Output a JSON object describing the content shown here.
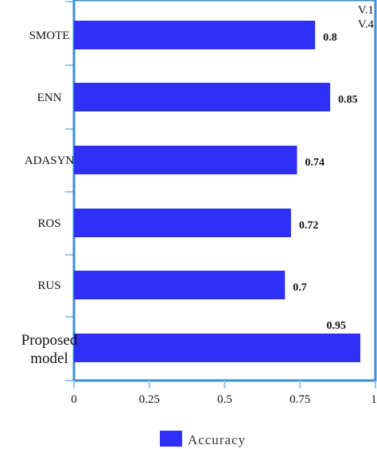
{
  "chart_data": {
    "type": "bar",
    "orientation": "horizontal",
    "categories": [
      "SMOTE",
      "ENN",
      "ADASYN",
      "ROS",
      "RUS",
      "Proposed model"
    ],
    "category_lines": [
      [
        "SMOTE"
      ],
      [
        "ENN"
      ],
      [
        "ADASYN"
      ],
      [
        "ROS"
      ],
      [
        "RUS"
      ],
      [
        "Proposed",
        "model"
      ]
    ],
    "series": [
      {
        "name": "Accuracy",
        "values": [
          0.8,
          0.85,
          0.74,
          0.72,
          0.7,
          0.95
        ]
      }
    ],
    "value_labels": [
      "0.8",
      "0.85",
      "0.74",
      "0.72",
      "0.7",
      "0.95"
    ],
    "xlim": [
      0,
      1
    ],
    "xticks": [
      "0",
      "0.25",
      "0.5",
      "0.75",
      "1"
    ],
    "corner_text": [
      "V.1",
      "V.4"
    ],
    "bar_color": "#2f2ff5",
    "frame_color": "#3a8fd8",
    "grid": false,
    "legend_position": "bottom-center"
  }
}
